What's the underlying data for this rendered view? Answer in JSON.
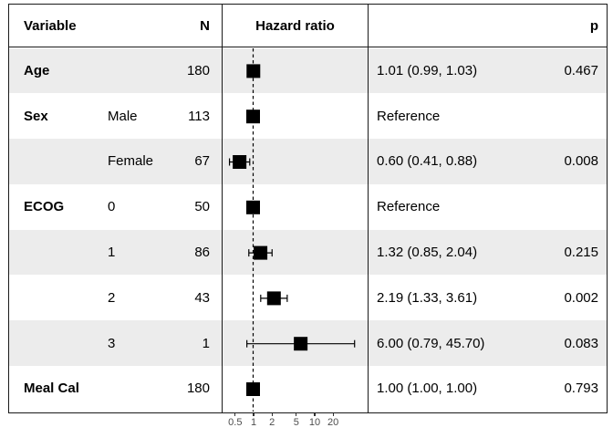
{
  "table": {
    "headers": {
      "variable": "Variable",
      "n": "N",
      "hazard_ratio": "Hazard ratio",
      "p": "p"
    }
  },
  "colors": {
    "stripe": "#ececec",
    "border": "#1a1a1a",
    "marker": "#000000",
    "reference_line": "#000000",
    "axis_text": "#4d4d4d"
  },
  "chart_data": {
    "type": "scatter",
    "subtype": "forest-plot",
    "xlabel": "Hazard ratio",
    "x_scale": "log",
    "x_ticks": [
      0.5,
      1,
      2,
      5,
      10,
      20
    ],
    "x_tick_labels": [
      "0.5",
      "1",
      "2",
      "5",
      "10",
      "20"
    ],
    "reference_line_x": 1,
    "grid": false,
    "legend": false,
    "rows": [
      {
        "variable": "Age",
        "level": "",
        "n": "180",
        "hr": 1.01,
        "ci_low": 0.99,
        "ci_high": 1.03,
        "estimate_label": "1.01 (0.99, 1.03)",
        "p": "0.467"
      },
      {
        "variable": "Sex",
        "level": "Male",
        "n": "113",
        "hr": 1.0,
        "ci_low": null,
        "ci_high": null,
        "estimate_label": "Reference",
        "p": ""
      },
      {
        "variable": "",
        "level": "Female",
        "n": "67",
        "hr": 0.6,
        "ci_low": 0.41,
        "ci_high": 0.88,
        "estimate_label": "0.60 (0.41, 0.88)",
        "p": "0.008"
      },
      {
        "variable": "ECOG",
        "level": "0",
        "n": "50",
        "hr": 1.0,
        "ci_low": null,
        "ci_high": null,
        "estimate_label": "Reference",
        "p": ""
      },
      {
        "variable": "",
        "level": "1",
        "n": "86",
        "hr": 1.32,
        "ci_low": 0.85,
        "ci_high": 2.04,
        "estimate_label": "1.32 (0.85, 2.04)",
        "p": "0.215"
      },
      {
        "variable": "",
        "level": "2",
        "n": "43",
        "hr": 2.19,
        "ci_low": 1.33,
        "ci_high": 3.61,
        "estimate_label": "2.19 (1.33, 3.61)",
        "p": "0.002"
      },
      {
        "variable": "",
        "level": "3",
        "n": "1",
        "hr": 6.0,
        "ci_low": 0.79,
        "ci_high": 45.7,
        "estimate_label": "6.00 (0.79, 45.70)",
        "p": "0.083"
      },
      {
        "variable": "Meal Cal",
        "level": "",
        "n": "180",
        "hr": 1.0,
        "ci_low": 1.0,
        "ci_high": 1.0,
        "estimate_label": "1.00 (1.00, 1.00)",
        "p": "0.793"
      }
    ]
  }
}
